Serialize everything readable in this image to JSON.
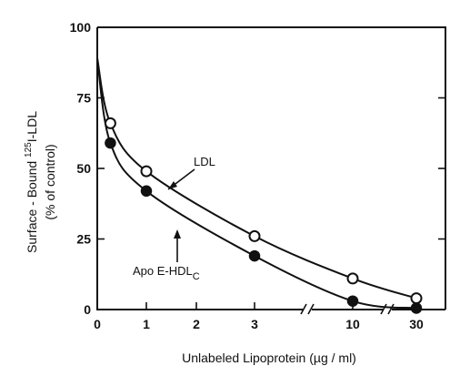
{
  "chart_data": {
    "type": "scatter",
    "xlabel": "Unlabeled Lipoprotein (µg / ml)",
    "ylabel_line1": "Surface - Bound ",
    "ylabel_super": "125",
    "ylabel_line1_end": "I-LDL",
    "ylabel_line2": "(% of control)",
    "x_ticks": [
      "0",
      "1",
      "2",
      "3",
      "10",
      "30"
    ],
    "x_tick_values": [
      0,
      1,
      2,
      3,
      10,
      30
    ],
    "y_ticks": [
      "0",
      "25",
      "50",
      "75",
      "100"
    ],
    "y_tick_values": [
      0,
      25,
      50,
      75,
      100
    ],
    "ylim": [
      0,
      100
    ],
    "x_scale": "broken axis (linear 0-3, then 10, 30)",
    "grid": false,
    "series": [
      {
        "name": "LDL",
        "marker": "open-circle",
        "x": [
          0.25,
          1,
          3,
          10,
          30
        ],
        "y": [
          66,
          49,
          26,
          11,
          4
        ]
      },
      {
        "name": "Apo E-HDL",
        "name_sub": "C",
        "marker": "filled-circle",
        "x": [
          0.25,
          1,
          3,
          10,
          30
        ],
        "y": [
          59,
          42,
          19,
          3,
          0.5
        ]
      }
    ],
    "curve_start_y": 89
  }
}
